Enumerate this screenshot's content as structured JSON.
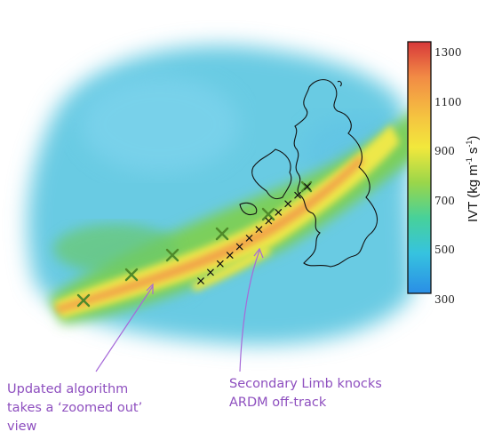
{
  "colorbar": {
    "title_main": "IVT (kg m",
    "title_exp1": "-1",
    "title_mid": " s",
    "title_exp2": "-1",
    "title_end": ")",
    "ticks": [
      1300,
      1100,
      900,
      700,
      500,
      300
    ],
    "colors": [
      "#d8383a",
      "#f39a45",
      "#f5e23a",
      "#8fd14a",
      "#3fcfb0",
      "#2e9be8"
    ]
  },
  "annotations": {
    "left": [
      "Updated algorithm",
      "takes a ‘zoomed out’",
      "view"
    ],
    "right": [
      "Secondary Limb knocks",
      "ARDM off-track"
    ],
    "color": "#8e4fbf"
  },
  "markers": {
    "updated_algorithm_symbol": "green-x",
    "ardm_symbol": "black-x"
  }
}
